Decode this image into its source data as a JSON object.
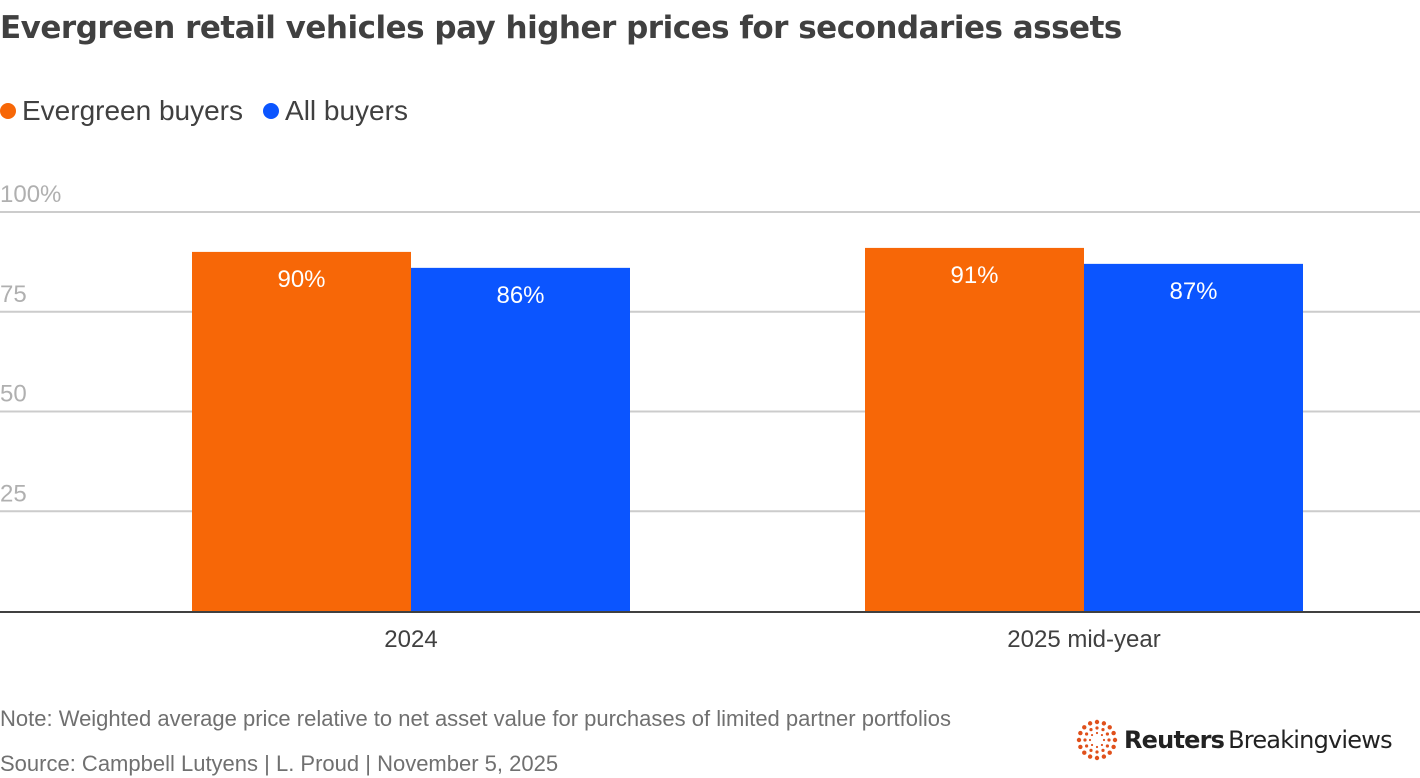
{
  "header": {
    "title": "Evergreen retail vehicles pay higher prices for secondaries assets"
  },
  "footer": {
    "note": "Note: Weighted average price relative to net asset value for purchases of limited partner portfolios",
    "source": "Source: Campbell Lutyens | L. Proud | November 5, 2025",
    "brand_bold": "Reuters",
    "brand_regular": "Breakingviews"
  },
  "chart_data": {
    "type": "bar",
    "title": "Evergreen retail vehicles pay higher prices for secondaries assets",
    "xlabel": "",
    "ylabel": "",
    "categories": [
      "2024",
      "2025 mid-year"
    ],
    "series": [
      {
        "name": "Evergreen buyers",
        "color": "#f76707",
        "values": [
          90,
          91
        ],
        "labels": [
          "90%",
          "91%"
        ]
      },
      {
        "name": "All buyers",
        "color": "#0b55ff",
        "values": [
          86,
          87
        ],
        "labels": [
          "86%",
          "87%"
        ]
      }
    ],
    "ylim": [
      0,
      100
    ],
    "yticks": [
      25,
      50,
      75,
      100
    ],
    "ytick_labels": [
      "25",
      "50",
      "75",
      "100%"
    ],
    "grid": true,
    "legend": "top-left",
    "gridline_color": "#cccccc",
    "axis_color": "#404040"
  }
}
